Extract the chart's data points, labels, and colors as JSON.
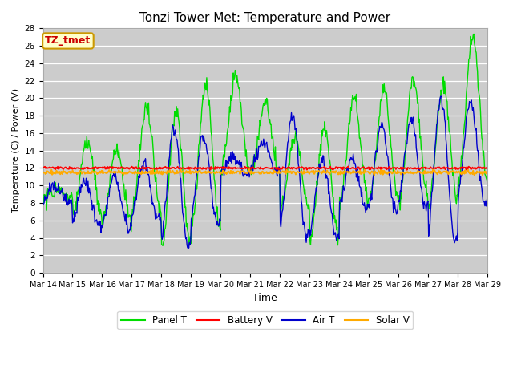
{
  "title": "Tonzi Tower Met: Temperature and Power",
  "xlabel": "Time",
  "ylabel": "Temperature (C) / Power (V)",
  "ylim": [
    0,
    28
  ],
  "yticks": [
    0,
    2,
    4,
    6,
    8,
    10,
    12,
    14,
    16,
    18,
    20,
    22,
    24,
    26,
    28
  ],
  "x_labels": [
    "Mar 14",
    "Mar 15",
    "Mar 16",
    "Mar 17",
    "Mar 18",
    "Mar 19",
    "Mar 20",
    "Mar 21",
    "Mar 22",
    "Mar 23",
    "Mar 24",
    "Mar 25",
    "Mar 26",
    "Mar 27",
    "Mar 28",
    "Mar 29"
  ],
  "panel_t_color": "#00dd00",
  "battery_v_color": "#ff0000",
  "air_t_color": "#0000cc",
  "solar_v_color": "#ffaa00",
  "bg_color": "#ffffff",
  "plot_bg_color": "#cccccc",
  "grid_color": "#bbbbbb",
  "annotation_text": "TZ_tmet",
  "annotation_fg": "#cc0000",
  "annotation_bg": "#ffffcc",
  "annotation_border": "#cc9900",
  "legend_labels": [
    "Panel T",
    "Battery V",
    "Air T",
    "Solar V"
  ]
}
